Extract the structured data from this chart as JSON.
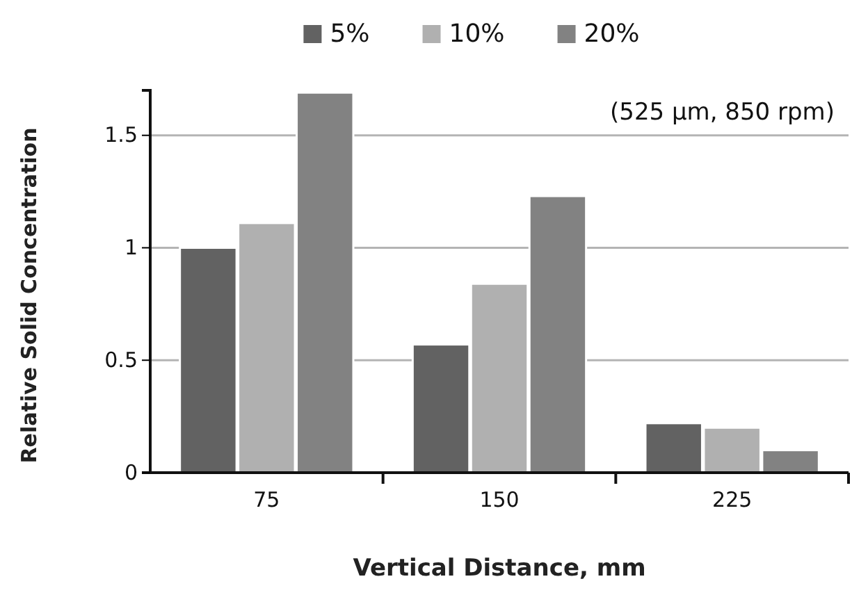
{
  "chart_data": {
    "type": "bar",
    "xlabel": "Vertical Distance, mm",
    "ylabel": "Relative Solid Concentration",
    "categories": [
      "75",
      "150",
      "225"
    ],
    "series": [
      {
        "name": "5%",
        "color": "#626262",
        "values": [
          1.0,
          0.57,
          0.22
        ]
      },
      {
        "name": "10%",
        "color": "#b0b0b0",
        "values": [
          1.11,
          0.84,
          0.2
        ]
      },
      {
        "name": "20%",
        "color": "#828282",
        "values": [
          1.69,
          1.23,
          0.1
        ]
      }
    ],
    "ylim": [
      0,
      1.7
    ],
    "yticks": [
      0,
      0.5,
      1,
      1.5
    ],
    "grid": "y",
    "legend": "top",
    "annotations": [
      "(525 µm, 850 rpm)"
    ]
  }
}
